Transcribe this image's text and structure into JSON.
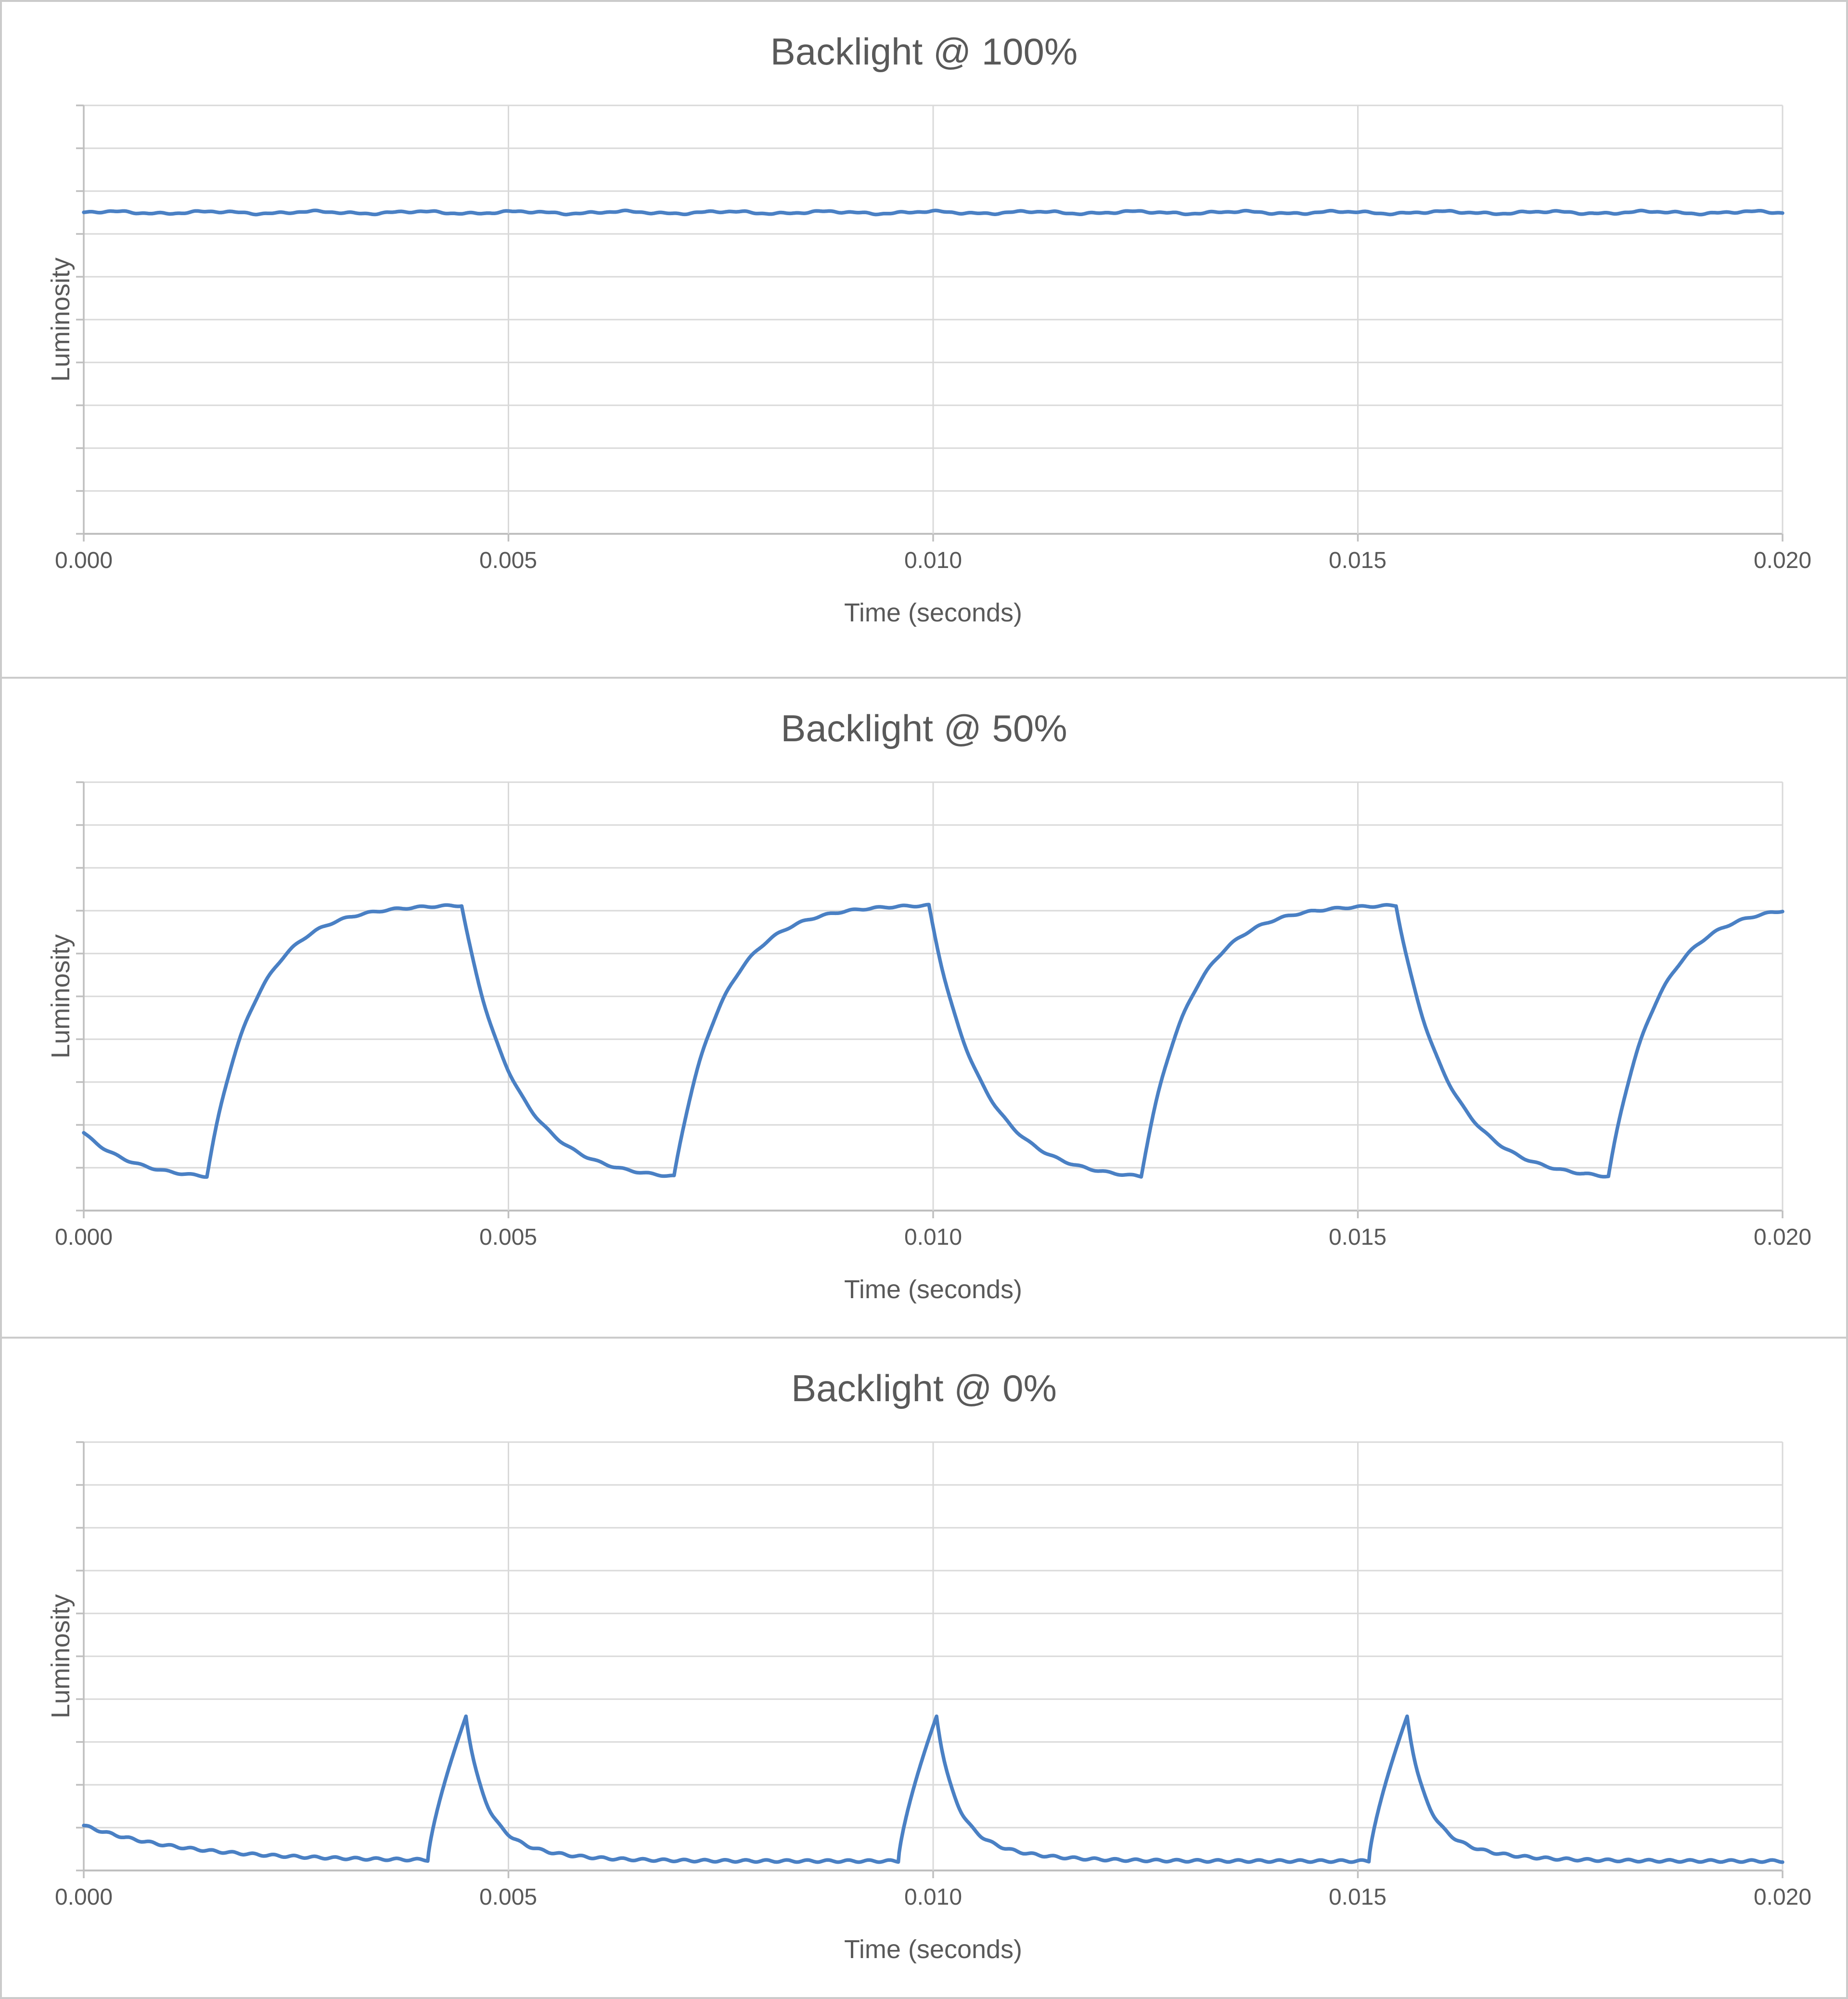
{
  "page": {
    "background": "#ffffff",
    "panel_border_color": "#cbcbcb",
    "description": "Three stacked oscilloscope-style luminosity traces of an LCD backlight at different PWM brightness settings"
  },
  "colors": {
    "series_line": "#4a80c4",
    "gridline": "#d9d9d9",
    "axis_line": "#bfbfbf",
    "text": "#595959"
  },
  "chart_data": [
    {
      "type": "line",
      "title": "Backlight @ 100%",
      "xlabel": "Time (seconds)",
      "ylabel": "Luminosity",
      "x_min": 0,
      "x_max": 0.02,
      "x_ticks": [
        "0.000",
        "0.005",
        "0.010",
        "0.015",
        "0.020"
      ],
      "y_axis": {
        "numeric_labels_shown": false,
        "gridline_intervals": 10,
        "value_units": "gridline units 0-10"
      },
      "legend": "none",
      "waveform": {
        "kind": "flat",
        "level": 7.5,
        "noise_amp": 0.05,
        "noise_freqs": [
          5200,
          13700,
          31000
        ]
      },
      "summary": "Steady luminosity at ~7.5/10 of plot height for the whole 0-0.020 s sweep; no flicker, only tiny sensor noise.",
      "key_points": [
        {
          "t": 0.0,
          "v": 7.5
        },
        {
          "t": 0.005,
          "v": 7.5
        },
        {
          "t": 0.01,
          "v": 7.5
        },
        {
          "t": 0.015,
          "v": 7.5
        },
        {
          "t": 0.02,
          "v": 7.5
        }
      ]
    },
    {
      "type": "line",
      "title": "Backlight @ 50%",
      "xlabel": "Time (seconds)",
      "ylabel": "Luminosity",
      "x_min": 0,
      "x_max": 0.02,
      "x_ticks": [
        "0.000",
        "0.005",
        "0.010",
        "0.015",
        "0.020"
      ],
      "y_axis": {
        "numeric_labels_shown": false,
        "gridline_intervals": 10,
        "value_units": "gridline units 0-10"
      },
      "legend": "none",
      "waveform": {
        "kind": "pwm",
        "period": 0.0055,
        "rise_start": 0.00145,
        "rise_duration": 0.003,
        "rise_tau": 0.00055,
        "plateau": 7.15,
        "min_level": 0.8,
        "fall_base": 0.7,
        "fall_tau": 0.0006,
        "noise_amp": 0.02
      },
      "summary": "PWM flicker at ~182 Hz (period 5.5 ms): exponential rise to a plateau at ~7.1/10 lasting ~3 ms, sharp drop and exponential decay to ~0.8/10; trace starts mid-decay at ~1.8/10.",
      "key_points": [
        {
          "t": 0.0,
          "v": 1.82,
          "note": "start, mid-decay"
        },
        {
          "t": 0.00145,
          "v": 0.8,
          "note": "minimum"
        },
        {
          "t": 0.00445,
          "v": 7.12,
          "note": "peak of plateau"
        },
        {
          "t": 0.007,
          "v": 0.8,
          "note": "minimum"
        },
        {
          "t": 0.00995,
          "v": 7.12,
          "note": "peak of plateau"
        },
        {
          "t": 0.0125,
          "v": 0.8,
          "note": "minimum"
        },
        {
          "t": 0.01545,
          "v": 7.12,
          "note": "peak of plateau"
        },
        {
          "t": 0.018,
          "v": 0.8,
          "note": "minimum"
        },
        {
          "t": 0.02,
          "v": 7.0,
          "note": "end, nearly back to plateau"
        }
      ]
    },
    {
      "type": "line",
      "title": "Backlight @ 0%",
      "xlabel": "Time (seconds)",
      "ylabel": "Luminosity",
      "x_min": 0,
      "x_max": 0.02,
      "x_ticks": [
        "0.000",
        "0.005",
        "0.010",
        "0.015",
        "0.020"
      ],
      "y_axis": {
        "numeric_labels_shown": false,
        "gridline_intervals": 10,
        "value_units": "gridline units 0-10"
      },
      "legend": "none",
      "waveform": {
        "kind": "spike",
        "peak_times": [
          0.0045,
          0.01004,
          0.01558
        ],
        "period": 0.00553,
        "rise_duration": 0.00045,
        "peak_level": 3.6,
        "baseline": 0.22,
        "fast_weight": 0.68,
        "decay_tau_fast": 0.00019,
        "decay_tau_slow": 0.00058,
        "lead_in_start": 1.05,
        "lead_in_tau": 0.0012,
        "noise_amp": 0.025
      },
      "summary": "Mostly dark baseline near the bottom with short luminance spikes every ~5.5 ms: steep ~0.45 ms rise to ~3.6/10 at t=0.0045, 0.0100, 0.0156 s, then fast two-stage exponential decay back to baseline; trace starts at ~1.05/10 decaying from a previous spike.",
      "key_points": [
        {
          "t": 0.0,
          "v": 1.05,
          "note": "start, decaying remnant"
        },
        {
          "t": 0.004,
          "v": 0.24,
          "note": "baseline before spike"
        },
        {
          "t": 0.0045,
          "v": 3.6,
          "note": "spike peak"
        },
        {
          "t": 0.0096,
          "v": 0.23,
          "note": "baseline"
        },
        {
          "t": 0.01004,
          "v": 3.6,
          "note": "spike peak"
        },
        {
          "t": 0.0151,
          "v": 0.23,
          "note": "baseline"
        },
        {
          "t": 0.01558,
          "v": 3.6,
          "note": "spike peak"
        },
        {
          "t": 0.02,
          "v": 0.24,
          "note": "end at baseline"
        }
      ]
    }
  ]
}
